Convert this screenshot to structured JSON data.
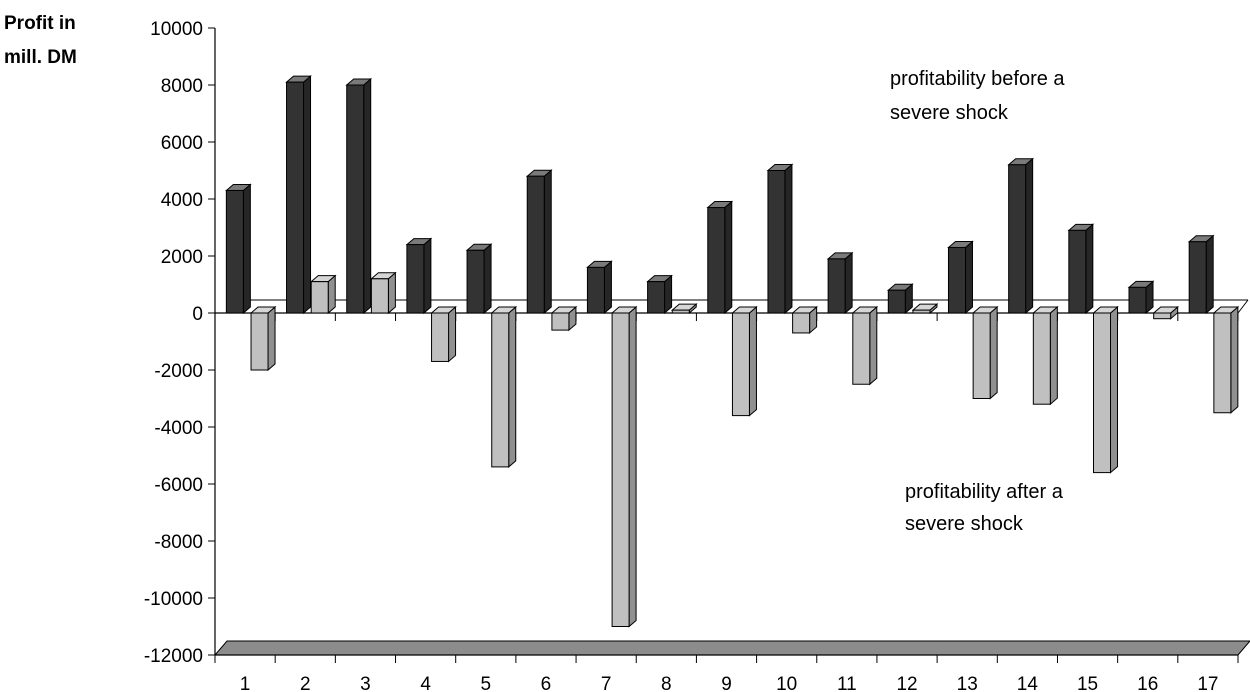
{
  "chart_data": {
    "type": "bar",
    "ylabel": [
      "Profit in",
      "mill. DM"
    ],
    "xlabel": "",
    "categories": [
      "1",
      "2",
      "3",
      "4",
      "5",
      "6",
      "7",
      "8",
      "9",
      "10",
      "11",
      "12",
      "13",
      "14",
      "15",
      "16",
      "17"
    ],
    "ylim": [
      -12000,
      10000
    ],
    "yticks": [
      10000,
      8000,
      6000,
      4000,
      2000,
      0,
      -2000,
      -4000,
      -6000,
      -8000,
      -10000,
      -12000
    ],
    "series": [
      {
        "name": "profitability before a severe shock",
        "color": "#333333",
        "values": [
          4300,
          8100,
          8000,
          2400,
          2200,
          4800,
          1600,
          1100,
          3700,
          5000,
          1900,
          800,
          2300,
          5200,
          2900,
          900,
          2500
        ]
      },
      {
        "name": "profitability after a severe shock",
        "color": "#c0c0c0",
        "values": [
          -2000,
          1100,
          1200,
          -1700,
          -5400,
          -600,
          -11000,
          100,
          -3600,
          -700,
          -2500,
          100,
          -3000,
          -3200,
          -5600,
          -200,
          -3500
        ]
      }
    ],
    "annotations": [
      {
        "series": 0,
        "lines": [
          "profitability before a",
          "severe shock"
        ]
      },
      {
        "series": 1,
        "lines": [
          "profitability after a",
          "severe shock"
        ]
      }
    ],
    "grid": false,
    "style": "3d"
  }
}
